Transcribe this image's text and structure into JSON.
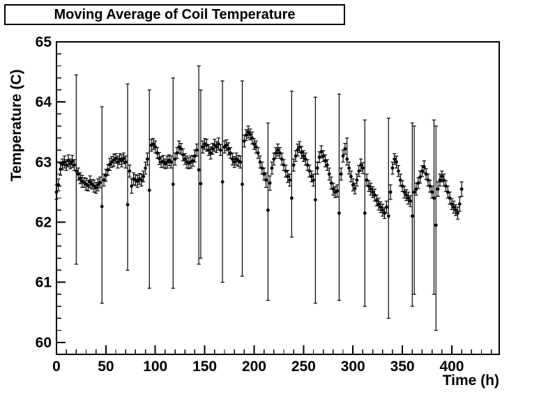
{
  "title": "Moving Average of Coil Temperature",
  "colors": {
    "foreground": "#000000",
    "background": "#ffffff",
    "marker": "#000000"
  },
  "chart_data": {
    "type": "scatter",
    "title": "Moving Average of Coil Temperature",
    "xlabel": "Time (h)",
    "ylabel": "Temperature (C)",
    "xlim": [
      0,
      448
    ],
    "ylim": [
      59.8,
      65
    ],
    "x_major_ticks": [
      0,
      50,
      100,
      150,
      200,
      250,
      300,
      350,
      400
    ],
    "x_minor_step": 10,
    "y_major_ticks": [
      60,
      61,
      62,
      63,
      64,
      65
    ],
    "y_minor_step": 0.2,
    "grid": false,
    "legend": null,
    "marker": "filled-circle",
    "error_bars": true,
    "points_format": [
      "t_hours",
      "temp_C",
      "err_low",
      "err_high"
    ],
    "points": [
      [
        0,
        62.5,
        0.12,
        0.12
      ],
      [
        2,
        62.62,
        0.1,
        0.1
      ],
      [
        4,
        62.88,
        0.1,
        0.1
      ],
      [
        6,
        62.96,
        0.09,
        0.09
      ],
      [
        8,
        63.0,
        0.1,
        0.1
      ],
      [
        10,
        62.95,
        0.09,
        0.09
      ],
      [
        12,
        63.02,
        0.1,
        0.1
      ],
      [
        14,
        62.97,
        0.08,
        0.08
      ],
      [
        16,
        63.01,
        0.1,
        0.1
      ],
      [
        18,
        62.95,
        0.09,
        0.09
      ],
      [
        20,
        62.85,
        1.55,
        1.6
      ],
      [
        22,
        62.8,
        0.1,
        0.1
      ],
      [
        24,
        62.73,
        0.09,
        0.09
      ],
      [
        26,
        62.68,
        0.1,
        0.1
      ],
      [
        28,
        62.66,
        0.08,
        0.08
      ],
      [
        30,
        62.63,
        0.1,
        0.1
      ],
      [
        32,
        62.61,
        0.09,
        0.09
      ],
      [
        34,
        62.67,
        0.1,
        0.1
      ],
      [
        36,
        62.63,
        0.08,
        0.08
      ],
      [
        38,
        62.6,
        0.1,
        0.1
      ],
      [
        40,
        62.57,
        0.09,
        0.09
      ],
      [
        42,
        62.62,
        0.1,
        0.1
      ],
      [
        44,
        62.66,
        0.09,
        0.09
      ],
      [
        46,
        62.26,
        1.61,
        1.66
      ],
      [
        48,
        62.7,
        0.1,
        0.1
      ],
      [
        50,
        62.78,
        0.1,
        0.1
      ],
      [
        52,
        62.87,
        0.09,
        0.09
      ],
      [
        54,
        62.96,
        0.1,
        0.1
      ],
      [
        56,
        63.0,
        0.09,
        0.09
      ],
      [
        58,
        63.03,
        0.1,
        0.1
      ],
      [
        60,
        63.06,
        0.08,
        0.08
      ],
      [
        62,
        63.0,
        0.1,
        0.1
      ],
      [
        64,
        63.05,
        0.09,
        0.09
      ],
      [
        66,
        63.02,
        0.1,
        0.1
      ],
      [
        68,
        63.06,
        0.09,
        0.09
      ],
      [
        70,
        63.0,
        0.1,
        0.1
      ],
      [
        72,
        62.29,
        1.09,
        2.01
      ],
      [
        74,
        62.85,
        0.1,
        0.1
      ],
      [
        76,
        62.6,
        0.12,
        0.12
      ],
      [
        78,
        62.72,
        0.1,
        0.1
      ],
      [
        80,
        62.7,
        0.09,
        0.09
      ],
      [
        82,
        62.68,
        0.1,
        0.1
      ],
      [
        84,
        62.72,
        0.09,
        0.09
      ],
      [
        86,
        62.7,
        0.1,
        0.1
      ],
      [
        88,
        62.76,
        0.09,
        0.09
      ],
      [
        90,
        62.9,
        0.1,
        0.1
      ],
      [
        92,
        63.05,
        0.1,
        0.1
      ],
      [
        94,
        62.53,
        1.63,
        1.67
      ],
      [
        96,
        63.28,
        0.1,
        0.1
      ],
      [
        98,
        63.3,
        0.09,
        0.09
      ],
      [
        100,
        63.25,
        0.1,
        0.1
      ],
      [
        102,
        63.15,
        0.09,
        0.09
      ],
      [
        104,
        63.06,
        0.1,
        0.1
      ],
      [
        106,
        63.0,
        0.09,
        0.09
      ],
      [
        108,
        63.01,
        0.1,
        0.1
      ],
      [
        110,
        62.97,
        0.08,
        0.08
      ],
      [
        112,
        63.0,
        0.1,
        0.1
      ],
      [
        114,
        63.03,
        0.09,
        0.09
      ],
      [
        116,
        63.0,
        0.1,
        0.1
      ],
      [
        118,
        62.63,
        1.73,
        1.77
      ],
      [
        120,
        63.05,
        0.1,
        0.1
      ],
      [
        122,
        63.15,
        0.09,
        0.09
      ],
      [
        124,
        63.25,
        0.1,
        0.1
      ],
      [
        126,
        63.22,
        0.09,
        0.09
      ],
      [
        128,
        63.12,
        0.1,
        0.1
      ],
      [
        130,
        63.05,
        0.09,
        0.09
      ],
      [
        132,
        63.0,
        0.1,
        0.1
      ],
      [
        134,
        62.98,
        0.09,
        0.09
      ],
      [
        136,
        63.0,
        0.1,
        0.1
      ],
      [
        138,
        63.02,
        0.09,
        0.09
      ],
      [
        140,
        63.1,
        0.1,
        0.1
      ],
      [
        142,
        63.2,
        0.1,
        0.1
      ],
      [
        144,
        62.87,
        1.57,
        1.73
      ],
      [
        146,
        62.64,
        1.24,
        1.56
      ],
      [
        148,
        63.25,
        0.1,
        0.1
      ],
      [
        150,
        63.3,
        0.09,
        0.09
      ],
      [
        152,
        63.28,
        0.1,
        0.1
      ],
      [
        154,
        63.2,
        0.09,
        0.09
      ],
      [
        156,
        63.15,
        0.1,
        0.1
      ],
      [
        158,
        63.22,
        0.09,
        0.09
      ],
      [
        160,
        63.28,
        0.1,
        0.1
      ],
      [
        162,
        63.25,
        0.09,
        0.09
      ],
      [
        164,
        63.3,
        0.1,
        0.1
      ],
      [
        166,
        63.2,
        0.09,
        0.09
      ],
      [
        168,
        62.67,
        1.67,
        1.68
      ],
      [
        170,
        63.25,
        0.1,
        0.1
      ],
      [
        172,
        63.28,
        0.09,
        0.09
      ],
      [
        174,
        63.22,
        0.1,
        0.1
      ],
      [
        176,
        63.15,
        0.09,
        0.09
      ],
      [
        178,
        63.05,
        0.1,
        0.1
      ],
      [
        180,
        63.0,
        0.09,
        0.09
      ],
      [
        182,
        63.05,
        0.1,
        0.1
      ],
      [
        184,
        63.02,
        0.09,
        0.09
      ],
      [
        186,
        63.0,
        0.1,
        0.1
      ],
      [
        188,
        62.63,
        1.53,
        1.72
      ],
      [
        190,
        63.35,
        0.1,
        0.1
      ],
      [
        192,
        63.45,
        0.09,
        0.09
      ],
      [
        194,
        63.5,
        0.1,
        0.1
      ],
      [
        196,
        63.46,
        0.09,
        0.09
      ],
      [
        198,
        63.4,
        0.1,
        0.1
      ],
      [
        200,
        63.3,
        0.09,
        0.09
      ],
      [
        202,
        63.25,
        0.1,
        0.1
      ],
      [
        204,
        63.15,
        0.09,
        0.09
      ],
      [
        206,
        63.0,
        0.1,
        0.1
      ],
      [
        208,
        62.9,
        0.1,
        0.1
      ],
      [
        210,
        62.8,
        0.1,
        0.1
      ],
      [
        212,
        62.7,
        0.12,
        0.12
      ],
      [
        214,
        62.2,
        1.5,
        1.45
      ],
      [
        216,
        62.65,
        0.12,
        0.12
      ],
      [
        218,
        62.9,
        0.1,
        0.1
      ],
      [
        220,
        63.05,
        0.1,
        0.1
      ],
      [
        222,
        63.15,
        0.09,
        0.09
      ],
      [
        224,
        63.2,
        0.1,
        0.1
      ],
      [
        226,
        63.15,
        0.09,
        0.09
      ],
      [
        228,
        63.05,
        0.1,
        0.1
      ],
      [
        230,
        62.95,
        0.09,
        0.09
      ],
      [
        232,
        62.85,
        0.1,
        0.1
      ],
      [
        234,
        62.76,
        0.1,
        0.1
      ],
      [
        236,
        62.7,
        0.1,
        0.1
      ],
      [
        238,
        62.4,
        0.65,
        1.78
      ],
      [
        240,
        62.95,
        0.1,
        0.1
      ],
      [
        242,
        63.1,
        0.09,
        0.09
      ],
      [
        244,
        63.2,
        0.1,
        0.1
      ],
      [
        246,
        63.25,
        0.09,
        0.09
      ],
      [
        248,
        63.16,
        0.1,
        0.1
      ],
      [
        250,
        63.1,
        0.09,
        0.09
      ],
      [
        252,
        63.05,
        0.1,
        0.1
      ],
      [
        254,
        62.95,
        0.09,
        0.09
      ],
      [
        256,
        62.85,
        0.1,
        0.1
      ],
      [
        258,
        62.76,
        0.09,
        0.09
      ],
      [
        260,
        62.7,
        0.1,
        0.1
      ],
      [
        262,
        62.37,
        1.72,
        1.71
      ],
      [
        264,
        62.9,
        0.1,
        0.1
      ],
      [
        266,
        63.08,
        0.09,
        0.09
      ],
      [
        268,
        63.17,
        0.1,
        0.1
      ],
      [
        270,
        63.1,
        0.09,
        0.09
      ],
      [
        272,
        63.02,
        0.1,
        0.1
      ],
      [
        274,
        62.95,
        0.09,
        0.09
      ],
      [
        276,
        62.8,
        0.1,
        0.1
      ],
      [
        278,
        62.65,
        0.1,
        0.1
      ],
      [
        280,
        62.55,
        0.1,
        0.1
      ],
      [
        282,
        62.5,
        0.09,
        0.09
      ],
      [
        284,
        62.52,
        0.1,
        0.1
      ],
      [
        286,
        62.15,
        1.45,
        1.98
      ],
      [
        288,
        62.8,
        0.1,
        0.1
      ],
      [
        290,
        63.1,
        0.1,
        0.1
      ],
      [
        292,
        63.22,
        0.09,
        0.09
      ],
      [
        294,
        63.05,
        0.1,
        0.35
      ],
      [
        296,
        62.9,
        0.1,
        0.1
      ],
      [
        298,
        62.76,
        0.09,
        0.09
      ],
      [
        300,
        62.62,
        0.1,
        0.1
      ],
      [
        302,
        62.56,
        0.09,
        0.09
      ],
      [
        304,
        62.7,
        0.1,
        0.1
      ],
      [
        306,
        62.85,
        0.09,
        0.09
      ],
      [
        308,
        62.95,
        0.1,
        0.1
      ],
      [
        310,
        62.9,
        0.09,
        0.09
      ],
      [
        312,
        62.15,
        1.55,
        1.55
      ],
      [
        314,
        62.7,
        0.1,
        0.1
      ],
      [
        316,
        62.6,
        0.09,
        0.09
      ],
      [
        318,
        62.55,
        0.1,
        0.1
      ],
      [
        320,
        62.5,
        0.09,
        0.09
      ],
      [
        322,
        62.45,
        0.1,
        0.1
      ],
      [
        324,
        62.36,
        0.09,
        0.09
      ],
      [
        326,
        62.3,
        0.1,
        0.1
      ],
      [
        328,
        62.25,
        0.09,
        0.09
      ],
      [
        330,
        62.2,
        0.1,
        0.1
      ],
      [
        332,
        62.15,
        0.09,
        0.09
      ],
      [
        334,
        62.25,
        0.1,
        0.1
      ],
      [
        336,
        62.1,
        1.7,
        1.63
      ],
      [
        338,
        62.5,
        0.12,
        0.12
      ],
      [
        340,
        62.9,
        0.1,
        0.1
      ],
      [
        342,
        63.05,
        0.09,
        0.09
      ],
      [
        344,
        63.0,
        0.1,
        0.1
      ],
      [
        346,
        62.85,
        0.09,
        0.09
      ],
      [
        348,
        62.7,
        0.1,
        0.1
      ],
      [
        350,
        62.6,
        0.09,
        0.09
      ],
      [
        352,
        62.5,
        0.1,
        0.1
      ],
      [
        354,
        62.45,
        0.09,
        0.09
      ],
      [
        356,
        62.4,
        0.1,
        0.1
      ],
      [
        358,
        62.35,
        0.09,
        0.09
      ],
      [
        360,
        62.1,
        1.5,
        1.55
      ],
      [
        362,
        62.5,
        1.7,
        1.1
      ],
      [
        364,
        62.55,
        0.1,
        0.1
      ],
      [
        366,
        62.65,
        0.09,
        0.09
      ],
      [
        368,
        62.75,
        0.1,
        0.1
      ],
      [
        370,
        62.85,
        0.09,
        0.09
      ],
      [
        372,
        62.92,
        0.1,
        0.1
      ],
      [
        374,
        62.8,
        0.09,
        0.09
      ],
      [
        376,
        62.7,
        0.1,
        0.1
      ],
      [
        378,
        62.6,
        0.1,
        0.1
      ],
      [
        380,
        62.5,
        0.1,
        0.1
      ],
      [
        382,
        62.4,
        1.6,
        1.3
      ],
      [
        384,
        61.95,
        1.75,
        1.65
      ],
      [
        386,
        62.55,
        0.12,
        0.12
      ],
      [
        388,
        62.7,
        0.1,
        0.1
      ],
      [
        390,
        62.76,
        0.09,
        0.09
      ],
      [
        392,
        62.7,
        0.1,
        0.1
      ],
      [
        394,
        62.6,
        0.09,
        0.09
      ],
      [
        396,
        62.5,
        0.1,
        0.1
      ],
      [
        398,
        62.4,
        0.1,
        0.1
      ],
      [
        400,
        62.3,
        0.09,
        0.09
      ],
      [
        402,
        62.25,
        0.1,
        0.1
      ],
      [
        404,
        62.2,
        0.09,
        0.09
      ],
      [
        406,
        62.15,
        0.1,
        0.1
      ],
      [
        408,
        62.3,
        0.12,
        0.12
      ],
      [
        410,
        62.55,
        0.12,
        0.12
      ]
    ]
  }
}
